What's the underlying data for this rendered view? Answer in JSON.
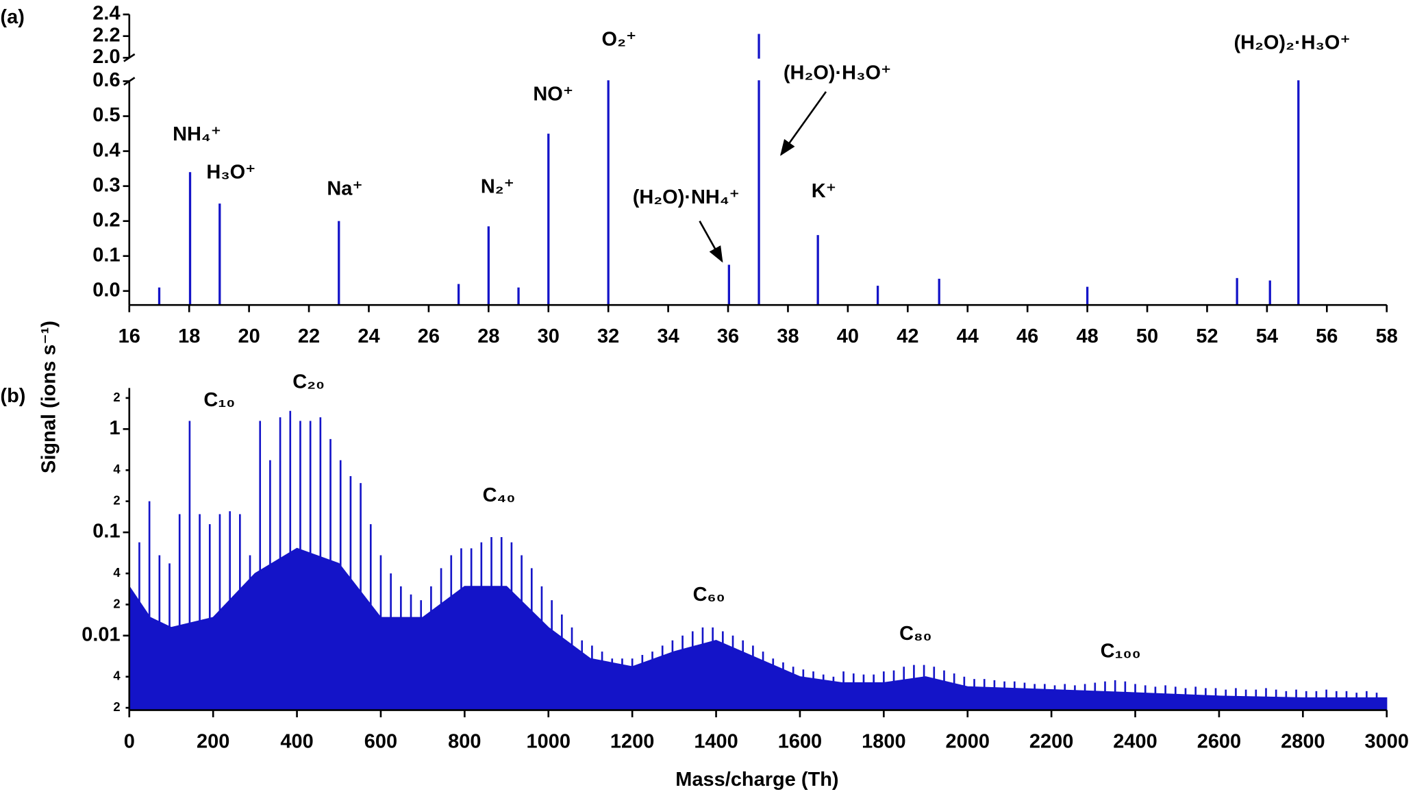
{
  "chart_data": [
    {
      "type": "stem",
      "label": "(a)",
      "ylabel": "Signal (ions s⁻¹)",
      "color": "#1414c8",
      "x": [
        17,
        18.03,
        19.02,
        23,
        27,
        28,
        29,
        30,
        32,
        36.03,
        37.03,
        39,
        41,
        43.05,
        48,
        53,
        54.1,
        55.05
      ],
      "values": [
        0.01,
        0.34,
        0.25,
        0.2,
        0.02,
        0.185,
        0.01,
        0.45,
        1.2,
        0.075,
        2.22,
        0.16,
        0.015,
        0.035,
        0.012,
        0.037,
        0.03,
        1.0
      ],
      "xlim": [
        16,
        58
      ],
      "xticks": [
        16,
        18,
        20,
        22,
        24,
        26,
        28,
        30,
        32,
        34,
        36,
        38,
        40,
        42,
        44,
        46,
        48,
        50,
        52,
        54,
        56,
        58
      ],
      "ylim": [
        -0.04,
        2.4
      ],
      "ybreak": [
        0.6,
        2.0
      ],
      "yticks": [
        {
          "value": 0,
          "label": "0.0"
        },
        0.1,
        0.2,
        0.3,
        0.4,
        0.5,
        0.6,
        {
          "value": 2,
          "label": "2.0"
        },
        2.2,
        2.4
      ],
      "annotations": [
        {
          "text": "NH₄⁺",
          "x": 18.26,
          "y": 0.446
        },
        {
          "text": "H₃O⁺",
          "x": 19.4,
          "y": 0.337
        },
        {
          "text": "Na⁺",
          "x": 23.2,
          "y": 0.29
        },
        {
          "text": "N₂⁺",
          "x": 28.3,
          "y": 0.296
        },
        {
          "text": "NO⁺",
          "x": 30.16,
          "y": 0.56
        },
        {
          "text": "O₂⁺",
          "x": 32.36,
          "y": 2.16
        },
        {
          "text": "(H₂O)·NH₄⁺",
          "x": 34.6,
          "y": 0.265,
          "arrow": [
            35.05,
            0.2,
            35.8,
            0.085
          ]
        },
        {
          "text": "(H₂O)·H₃O⁺",
          "x": 39.65,
          "y": 1.03,
          "arrow": [
            39.27,
            0.57,
            37.77,
            0.39
          ]
        },
        {
          "text": "K⁺",
          "x": 39.2,
          "y": 0.283
        },
        {
          "text": "(H₂O)₂·H₃O⁺",
          "x": 54.84,
          "y": 2.13
        }
      ]
    },
    {
      "type": "stem",
      "label": "(b)",
      "xlabel": "Mass/charge (Th)",
      "color": "#1414c8",
      "log_y": true,
      "x": [
        24,
        48,
        72,
        96,
        120,
        144,
        168,
        192,
        216,
        240,
        264,
        288,
        312,
        336,
        360,
        384,
        408,
        432,
        456,
        480,
        504,
        528,
        552,
        576,
        600,
        624,
        648,
        672,
        696,
        720,
        744,
        768,
        792,
        816,
        840,
        864,
        888,
        912,
        936,
        960,
        984,
        1008,
        1032,
        1056,
        1080,
        1104,
        1128,
        1152,
        1176,
        1200,
        1224,
        1248,
        1272,
        1296,
        1320,
        1344,
        1368,
        1392,
        1416,
        1440,
        1464,
        1488,
        1512,
        1536,
        1560,
        1584,
        1608,
        1632,
        1656,
        1680,
        1704,
        1728,
        1752,
        1776,
        1800,
        1824,
        1848,
        1872,
        1896,
        1920,
        1944,
        1968,
        1992,
        2016,
        2040,
        2064,
        2088,
        2112,
        2136,
        2160,
        2184,
        2208,
        2232,
        2256,
        2280,
        2304,
        2328,
        2352,
        2376,
        2400,
        2424,
        2448,
        2472,
        2496,
        2520,
        2544,
        2568,
        2592,
        2616,
        2640,
        2664,
        2688,
        2712,
        2736,
        2760,
        2784,
        2808,
        2832,
        2856,
        2880,
        2904,
        2928,
        2952,
        2976
      ],
      "values": [
        0.08,
        0.2,
        0.06,
        0.05,
        0.15,
        1.2,
        0.15,
        0.12,
        0.15,
        0.16,
        0.15,
        0.06,
        1.2,
        0.5,
        1.3,
        1.5,
        1.2,
        1.2,
        1.3,
        0.8,
        0.5,
        0.35,
        0.3,
        0.12,
        0.06,
        0.04,
        0.03,
        0.025,
        0.022,
        0.03,
        0.045,
        0.06,
        0.07,
        0.07,
        0.08,
        0.09,
        0.09,
        0.08,
        0.06,
        0.045,
        0.03,
        0.022,
        0.016,
        0.012,
        0.009,
        0.008,
        0.007,
        0.006,
        0.006,
        0.006,
        0.0065,
        0.007,
        0.008,
        0.009,
        0.01,
        0.011,
        0.012,
        0.012,
        0.011,
        0.01,
        0.009,
        0.008,
        0.007,
        0.006,
        0.0055,
        0.005,
        0.0047,
        0.0045,
        0.0042,
        0.004,
        0.0045,
        0.0043,
        0.0042,
        0.0042,
        0.0045,
        0.0046,
        0.005,
        0.0052,
        0.0052,
        0.005,
        0.0046,
        0.0043,
        0.004,
        0.0038,
        0.0038,
        0.0037,
        0.0036,
        0.0036,
        0.0035,
        0.0034,
        0.0034,
        0.0033,
        0.0034,
        0.0033,
        0.0034,
        0.0035,
        0.0036,
        0.0037,
        0.0036,
        0.0034,
        0.0033,
        0.0032,
        0.0033,
        0.0032,
        0.0031,
        0.0032,
        0.0031,
        0.0031,
        0.003,
        0.0031,
        0.003,
        0.003,
        0.0031,
        0.003,
        0.0029,
        0.003,
        0.0029,
        0.0029,
        0.003,
        0.0029,
        0.0029,
        0.0028,
        0.0029,
        0.0028
      ],
      "background": {
        "x": [
          0,
          50,
          100,
          200,
          300,
          400,
          500,
          600,
          700,
          800,
          900,
          1000,
          1100,
          1200,
          1300,
          1400,
          1500,
          1600,
          1700,
          1800,
          1900,
          2000,
          2200,
          2400,
          2600,
          2800,
          3000
        ],
        "values": [
          0.03,
          0.015,
          0.012,
          0.015,
          0.04,
          0.07,
          0.05,
          0.015,
          0.015,
          0.03,
          0.03,
          0.012,
          0.006,
          0.005,
          0.007,
          0.009,
          0.006,
          0.004,
          0.0035,
          0.0035,
          0.004,
          0.0032,
          0.003,
          0.0028,
          0.0026,
          0.0025,
          0.0025
        ]
      },
      "xlim": [
        0,
        3000
      ],
      "xticks": [
        0,
        200,
        400,
        600,
        800,
        1000,
        1200,
        1400,
        1600,
        1800,
        2000,
        2200,
        2400,
        2600,
        2800,
        3000
      ],
      "ylim": [
        0.0019,
        2.5
      ],
      "yticks": [
        {
          "value": 0.002,
          "label": "2"
        },
        {
          "value": 0.004,
          "label": "4"
        },
        0.01,
        {
          "value": 0.02,
          "label": "2"
        },
        {
          "value": 0.04,
          "label": "4"
        },
        0.1,
        {
          "value": 0.2,
          "label": "2"
        },
        {
          "value": 0.4,
          "label": "4"
        },
        1,
        2
      ],
      "annotations": [
        {
          "text": "C₁₀",
          "x": 215,
          "y": 1.87
        },
        {
          "text": "C₂₀",
          "x": 428,
          "y": 2.8
        },
        {
          "text": "C₄₀",
          "x": 882,
          "y": 0.224
        },
        {
          "text": "C₆₀",
          "x": 1383,
          "y": 0.0244
        },
        {
          "text": "C₈₀",
          "x": 1876,
          "y": 0.0102
        },
        {
          "text": "C₁₀₀",
          "x": 2365,
          "y": 0.0069
        }
      ]
    }
  ]
}
